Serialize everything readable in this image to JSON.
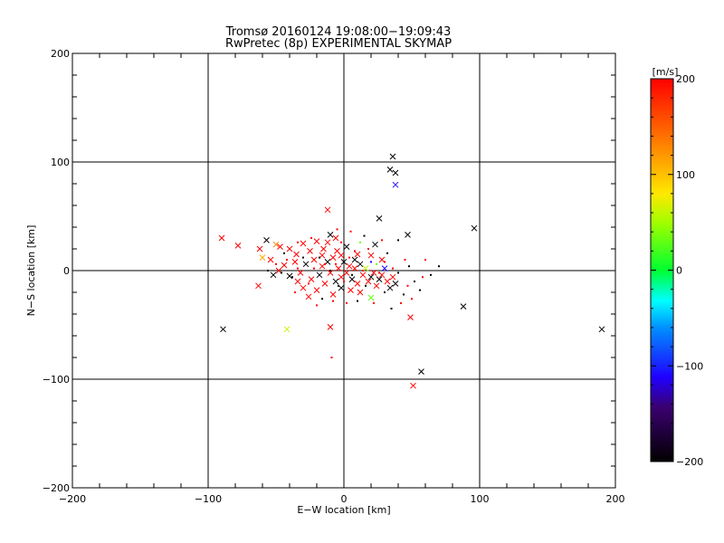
{
  "chart_data": {
    "type": "scatter",
    "title": "Tromsø 20160124 19:08:00−19:09:43",
    "subtitle": "RwPretec (8p) EXPERIMENTAL SKYMAP",
    "xlabel": "E−W location [km]",
    "ylabel": "N−S location [km]",
    "xlim": [
      -200,
      200
    ],
    "ylim": [
      -200,
      200
    ],
    "x_ticks": [
      {
        "value": -200,
        "label": "−200"
      },
      {
        "value": -100,
        "label": "−100"
      },
      {
        "value": 0,
        "label": "0"
      },
      {
        "value": 100,
        "label": "100"
      },
      {
        "value": 200,
        "label": "200"
      }
    ],
    "y_ticks": [
      {
        "value": -200,
        "label": "−200"
      },
      {
        "value": -100,
        "label": "−100"
      },
      {
        "value": 0,
        "label": "0"
      },
      {
        "value": 100,
        "label": "100"
      },
      {
        "value": 200,
        "label": "200"
      }
    ],
    "grid_lines": [
      -100,
      0,
      100
    ],
    "colorbar": {
      "label": "[m/s]",
      "range": [
        -200,
        200
      ],
      "ticks": [
        {
          "value": 200,
          "label": "200"
        },
        {
          "value": 100,
          "label": "100"
        },
        {
          "value": 0,
          "label": "0"
        },
        {
          "value": -100,
          "label": "−100"
        },
        {
          "value": -200,
          "label": "−200"
        }
      ]
    },
    "series": [
      {
        "name": "cross markers",
        "marker": "x",
        "points": [
          {
            "x": 36,
            "y": 105,
            "v": -200
          },
          {
            "x": 34,
            "y": 93,
            "v": -200
          },
          {
            "x": 38,
            "y": 90,
            "v": -200
          },
          {
            "x": 38,
            "y": 79,
            "v": -110
          },
          {
            "x": 26,
            "y": 48,
            "v": -200
          },
          {
            "x": 96,
            "y": 39,
            "v": -200
          },
          {
            "x": 47,
            "y": 33,
            "v": -200
          },
          {
            "x": 190,
            "y": -54,
            "v": -200
          },
          {
            "x": 88,
            "y": -33,
            "v": -200
          },
          {
            "x": 57,
            "y": -93,
            "v": -200
          },
          {
            "x": 51,
            "y": -106,
            "v": 200
          },
          {
            "x": -89,
            "y": -54,
            "v": -200
          },
          {
            "x": -42,
            "y": -54,
            "v": 60
          },
          {
            "x": -10,
            "y": -52,
            "v": 200
          },
          {
            "x": 49,
            "y": -43,
            "v": 200
          },
          {
            "x": -90,
            "y": 30,
            "v": 200
          },
          {
            "x": -78,
            "y": 23,
            "v": 200
          },
          {
            "x": -62,
            "y": 20,
            "v": 200
          },
          {
            "x": -57,
            "y": 28,
            "v": -200
          },
          {
            "x": -50,
            "y": 24,
            "v": 130
          },
          {
            "x": -47,
            "y": 22,
            "v": 200
          },
          {
            "x": -60,
            "y": 12,
            "v": 110
          },
          {
            "x": -54,
            "y": 10,
            "v": 200
          },
          {
            "x": -63,
            "y": -14,
            "v": 200
          },
          {
            "x": -12,
            "y": 56,
            "v": 200
          },
          {
            "x": -10,
            "y": 33,
            "v": -200
          },
          {
            "x": -6,
            "y": 30,
            "v": 200
          },
          {
            "x": -20,
            "y": 27,
            "v": 200
          },
          {
            "x": -30,
            "y": 25,
            "v": 200
          },
          {
            "x": -40,
            "y": 20,
            "v": 200
          },
          {
            "x": -35,
            "y": 15,
            "v": 200
          },
          {
            "x": -25,
            "y": 18,
            "v": 200
          },
          {
            "x": -15,
            "y": 20,
            "v": 200
          },
          {
            "x": -5,
            "y": 18,
            "v": 200
          },
          {
            "x": 2,
            "y": 22,
            "v": -200
          },
          {
            "x": 10,
            "y": 15,
            "v": 200
          },
          {
            "x": 20,
            "y": 14,
            "v": 200
          },
          {
            "x": 28,
            "y": 10,
            "v": 200
          },
          {
            "x": 23,
            "y": 24,
            "v": -200
          },
          {
            "x": -44,
            "y": 5,
            "v": 200
          },
          {
            "x": -40,
            "y": -5,
            "v": -200
          },
          {
            "x": -36,
            "y": 8,
            "v": 200
          },
          {
            "x": -32,
            "y": -2,
            "v": 200
          },
          {
            "x": -28,
            "y": 6,
            "v": -200
          },
          {
            "x": -24,
            "y": -8,
            "v": 200
          },
          {
            "x": -22,
            "y": 10,
            "v": 200
          },
          {
            "x": -18,
            "y": -4,
            "v": -200
          },
          {
            "x": -16,
            "y": 4,
            "v": 200
          },
          {
            "x": -14,
            "y": -12,
            "v": 200
          },
          {
            "x": -12,
            "y": 8,
            "v": -200
          },
          {
            "x": -10,
            "y": -2,
            "v": 200
          },
          {
            "x": -8,
            "y": 12,
            "v": 200
          },
          {
            "x": -6,
            "y": -10,
            "v": -200
          },
          {
            "x": -4,
            "y": 2,
            "v": 200
          },
          {
            "x": -2,
            "y": -6,
            "v": 200
          },
          {
            "x": 0,
            "y": 8,
            "v": -200
          },
          {
            "x": 2,
            "y": -2,
            "v": 200
          },
          {
            "x": 4,
            "y": 4,
            "v": 200
          },
          {
            "x": 6,
            "y": -8,
            "v": -200
          },
          {
            "x": 8,
            "y": 2,
            "v": 200
          },
          {
            "x": 10,
            "y": -12,
            "v": 200
          },
          {
            "x": 12,
            "y": 6,
            "v": -200
          },
          {
            "x": 14,
            "y": -4,
            "v": 200
          },
          {
            "x": 16,
            "y": 2,
            "v": 60
          },
          {
            "x": 18,
            "y": -10,
            "v": 200
          },
          {
            "x": 20,
            "y": -6,
            "v": -200
          },
          {
            "x": 22,
            "y": -2,
            "v": 200
          },
          {
            "x": 24,
            "y": -14,
            "v": 200
          },
          {
            "x": 26,
            "y": -8,
            "v": -200
          },
          {
            "x": 28,
            "y": -4,
            "v": 200
          },
          {
            "x": 30,
            "y": 2,
            "v": -110
          },
          {
            "x": 32,
            "y": -10,
            "v": 200
          },
          {
            "x": 34,
            "y": -16,
            "v": -200
          },
          {
            "x": 36,
            "y": -6,
            "v": 200
          },
          {
            "x": 38,
            "y": -12,
            "v": -200
          },
          {
            "x": 20,
            "y": -25,
            "v": 30
          },
          {
            "x": -8,
            "y": -22,
            "v": 200
          },
          {
            "x": -20,
            "y": -18,
            "v": 200
          },
          {
            "x": -30,
            "y": -16,
            "v": 200
          },
          {
            "x": -26,
            "y": -24,
            "v": 200
          },
          {
            "x": 5,
            "y": -18,
            "v": 200
          },
          {
            "x": -2,
            "y": -16,
            "v": -200
          },
          {
            "x": 12,
            "y": -20,
            "v": 200
          },
          {
            "x": -34,
            "y": -10,
            "v": 200
          },
          {
            "x": -48,
            "y": 0,
            "v": 200
          },
          {
            "x": -52,
            "y": -4,
            "v": -200
          },
          {
            "x": -16,
            "y": 14,
            "v": 200
          },
          {
            "x": -2,
            "y": 14,
            "v": 200
          },
          {
            "x": 8,
            "y": 10,
            "v": -200
          },
          {
            "x": -12,
            "y": 26,
            "v": 200
          }
        ]
      },
      {
        "name": "dot markers",
        "marker": "dot",
        "points": [
          {
            "x": -9,
            "y": -80,
            "v": 200
          },
          {
            "x": 70,
            "y": 4,
            "v": -200
          },
          {
            "x": 64,
            "y": -4,
            "v": -200
          },
          {
            "x": 58,
            "y": -6,
            "v": 200
          },
          {
            "x": 52,
            "y": -10,
            "v": -200
          },
          {
            "x": 47,
            "y": -14,
            "v": 200
          },
          {
            "x": 44,
            "y": -22,
            "v": -200
          },
          {
            "x": 56,
            "y": -18,
            "v": -200
          },
          {
            "x": 48,
            "y": 4,
            "v": -200
          },
          {
            "x": 60,
            "y": 10,
            "v": 200
          },
          {
            "x": 45,
            "y": 10,
            "v": 200
          },
          {
            "x": 40,
            "y": -2,
            "v": -200
          },
          {
            "x": 36,
            "y": 2,
            "v": 200
          },
          {
            "x": 30,
            "y": -20,
            "v": -200
          },
          {
            "x": 42,
            "y": -30,
            "v": 200
          },
          {
            "x": 35,
            "y": -35,
            "v": -200
          },
          {
            "x": 28,
            "y": 28,
            "v": 200
          },
          {
            "x": 40,
            "y": 28,
            "v": -200
          },
          {
            "x": 15,
            "y": 32,
            "v": -200
          },
          {
            "x": 5,
            "y": 36,
            "v": 200
          },
          {
            "x": -5,
            "y": 38,
            "v": 200
          },
          {
            "x": 12,
            "y": 26,
            "v": 30
          },
          {
            "x": 18,
            "y": 20,
            "v": 200
          },
          {
            "x": 32,
            "y": 16,
            "v": -200
          },
          {
            "x": 24,
            "y": 6,
            "v": 30
          },
          {
            "x": 14,
            "y": 0,
            "v": 200
          },
          {
            "x": 6,
            "y": -4,
            "v": -200
          },
          {
            "x": 0,
            "y": -10,
            "v": 200
          },
          {
            "x": -4,
            "y": -14,
            "v": -200
          },
          {
            "x": -10,
            "y": 0,
            "v": -200
          },
          {
            "x": -14,
            "y": 6,
            "v": 200
          },
          {
            "x": -18,
            "y": 12,
            "v": -200
          },
          {
            "x": -22,
            "y": 2,
            "v": 200
          },
          {
            "x": -26,
            "y": -12,
            "v": 200
          },
          {
            "x": -30,
            "y": 12,
            "v": -200
          },
          {
            "x": -34,
            "y": 2,
            "v": 200
          },
          {
            "x": -38,
            "y": -6,
            "v": -200
          },
          {
            "x": -42,
            "y": 10,
            "v": 200
          },
          {
            "x": -46,
            "y": -2,
            "v": -200
          },
          {
            "x": -50,
            "y": 6,
            "v": 200
          },
          {
            "x": -56,
            "y": 0,
            "v": -200
          },
          {
            "x": -24,
            "y": 30,
            "v": 200
          },
          {
            "x": -34,
            "y": 26,
            "v": 200
          },
          {
            "x": -44,
            "y": 16,
            "v": -200
          },
          {
            "x": -8,
            "y": -28,
            "v": 200
          },
          {
            "x": -16,
            "y": -26,
            "v": -200
          },
          {
            "x": -36,
            "y": -20,
            "v": 200
          },
          {
            "x": 2,
            "y": -30,
            "v": 200
          },
          {
            "x": 10,
            "y": -28,
            "v": -200
          },
          {
            "x": 22,
            "y": -30,
            "v": 200
          },
          {
            "x": -2,
            "y": 26,
            "v": 200
          },
          {
            "x": 8,
            "y": 18,
            "v": 200
          },
          {
            "x": 20,
            "y": 8,
            "v": -110
          },
          {
            "x": 26,
            "y": -2,
            "v": 200
          },
          {
            "x": 16,
            "y": -14,
            "v": -200
          },
          {
            "x": 4,
            "y": 12,
            "v": 200
          },
          {
            "x": -6,
            "y": 6,
            "v": 200
          },
          {
            "x": 30,
            "y": 8,
            "v": 200
          },
          {
            "x": 50,
            "y": -26,
            "v": 200
          },
          {
            "x": -20,
            "y": -32,
            "v": 200
          }
        ]
      }
    ]
  }
}
